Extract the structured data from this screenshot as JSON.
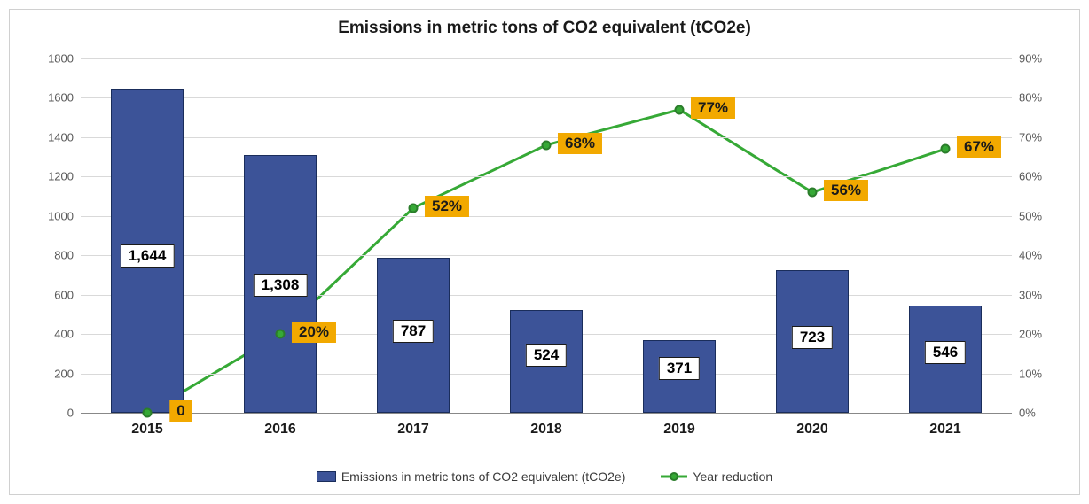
{
  "chart": {
    "type": "bar+line",
    "title": "Emissions in metric tons of CO2 equivalent (tCO2e)",
    "title_fontsize": 19,
    "title_color": "#1a1a1a",
    "background_color": "#ffffff",
    "grid_color": "#d9d9d9",
    "categories": [
      "2015",
      "2016",
      "2017",
      "2018",
      "2019",
      "2020",
      "2021"
    ],
    "x_tick_fontsize": 16,
    "bars": {
      "label": "Emissions in metric tons of CO2 equivalent (tCO2e)",
      "values": [
        1644,
        1308,
        787,
        524,
        371,
        723,
        546
      ],
      "value_labels": [
        "1,644",
        "1,308",
        "787",
        "524",
        "371",
        "723",
        "546"
      ],
      "color": "#3c5398",
      "border_color": "#1a2d5b",
      "bar_width_frac": 0.55,
      "data_label_fontsize": 17,
      "data_label_bg": "#ffffff",
      "data_label_border": "#1a1a1a"
    },
    "line": {
      "label": "Year reduction",
      "values_pct": [
        0,
        20,
        52,
        68,
        77,
        56,
        67
      ],
      "value_labels": [
        "0",
        "20%",
        "52%",
        "68%",
        "77%",
        "56%",
        "67%"
      ],
      "line_color": "#36a936",
      "line_width": 3,
      "marker_fill": "#36a936",
      "marker_border": "#2b7d2b",
      "marker_size": 11,
      "data_label_bg": "#f2a900",
      "data_label_fontsize": 17,
      "data_label_color": "#1a1a1a"
    },
    "y_left": {
      "min": 0,
      "max": 1800,
      "step": 200,
      "ticks": [
        0,
        200,
        400,
        600,
        800,
        1000,
        1200,
        1400,
        1600,
        1800
      ],
      "fontsize": 13,
      "color": "#595959"
    },
    "y_right": {
      "min": 0,
      "max": 90,
      "step": 10,
      "ticks": [
        0,
        10,
        20,
        30,
        40,
        50,
        60,
        70,
        80,
        90
      ],
      "tick_labels": [
        "0%",
        "10%",
        "20%",
        "30%",
        "40%",
        "50%",
        "60%",
        "70%",
        "80%",
        "90%"
      ],
      "fontsize": 13,
      "color": "#595959"
    },
    "legend": {
      "items": [
        {
          "kind": "bar",
          "text": "Emissions in metric tons of CO2 equivalent (tCO2e)"
        },
        {
          "kind": "line",
          "text": "Year reduction"
        }
      ],
      "fontsize": 14
    }
  }
}
